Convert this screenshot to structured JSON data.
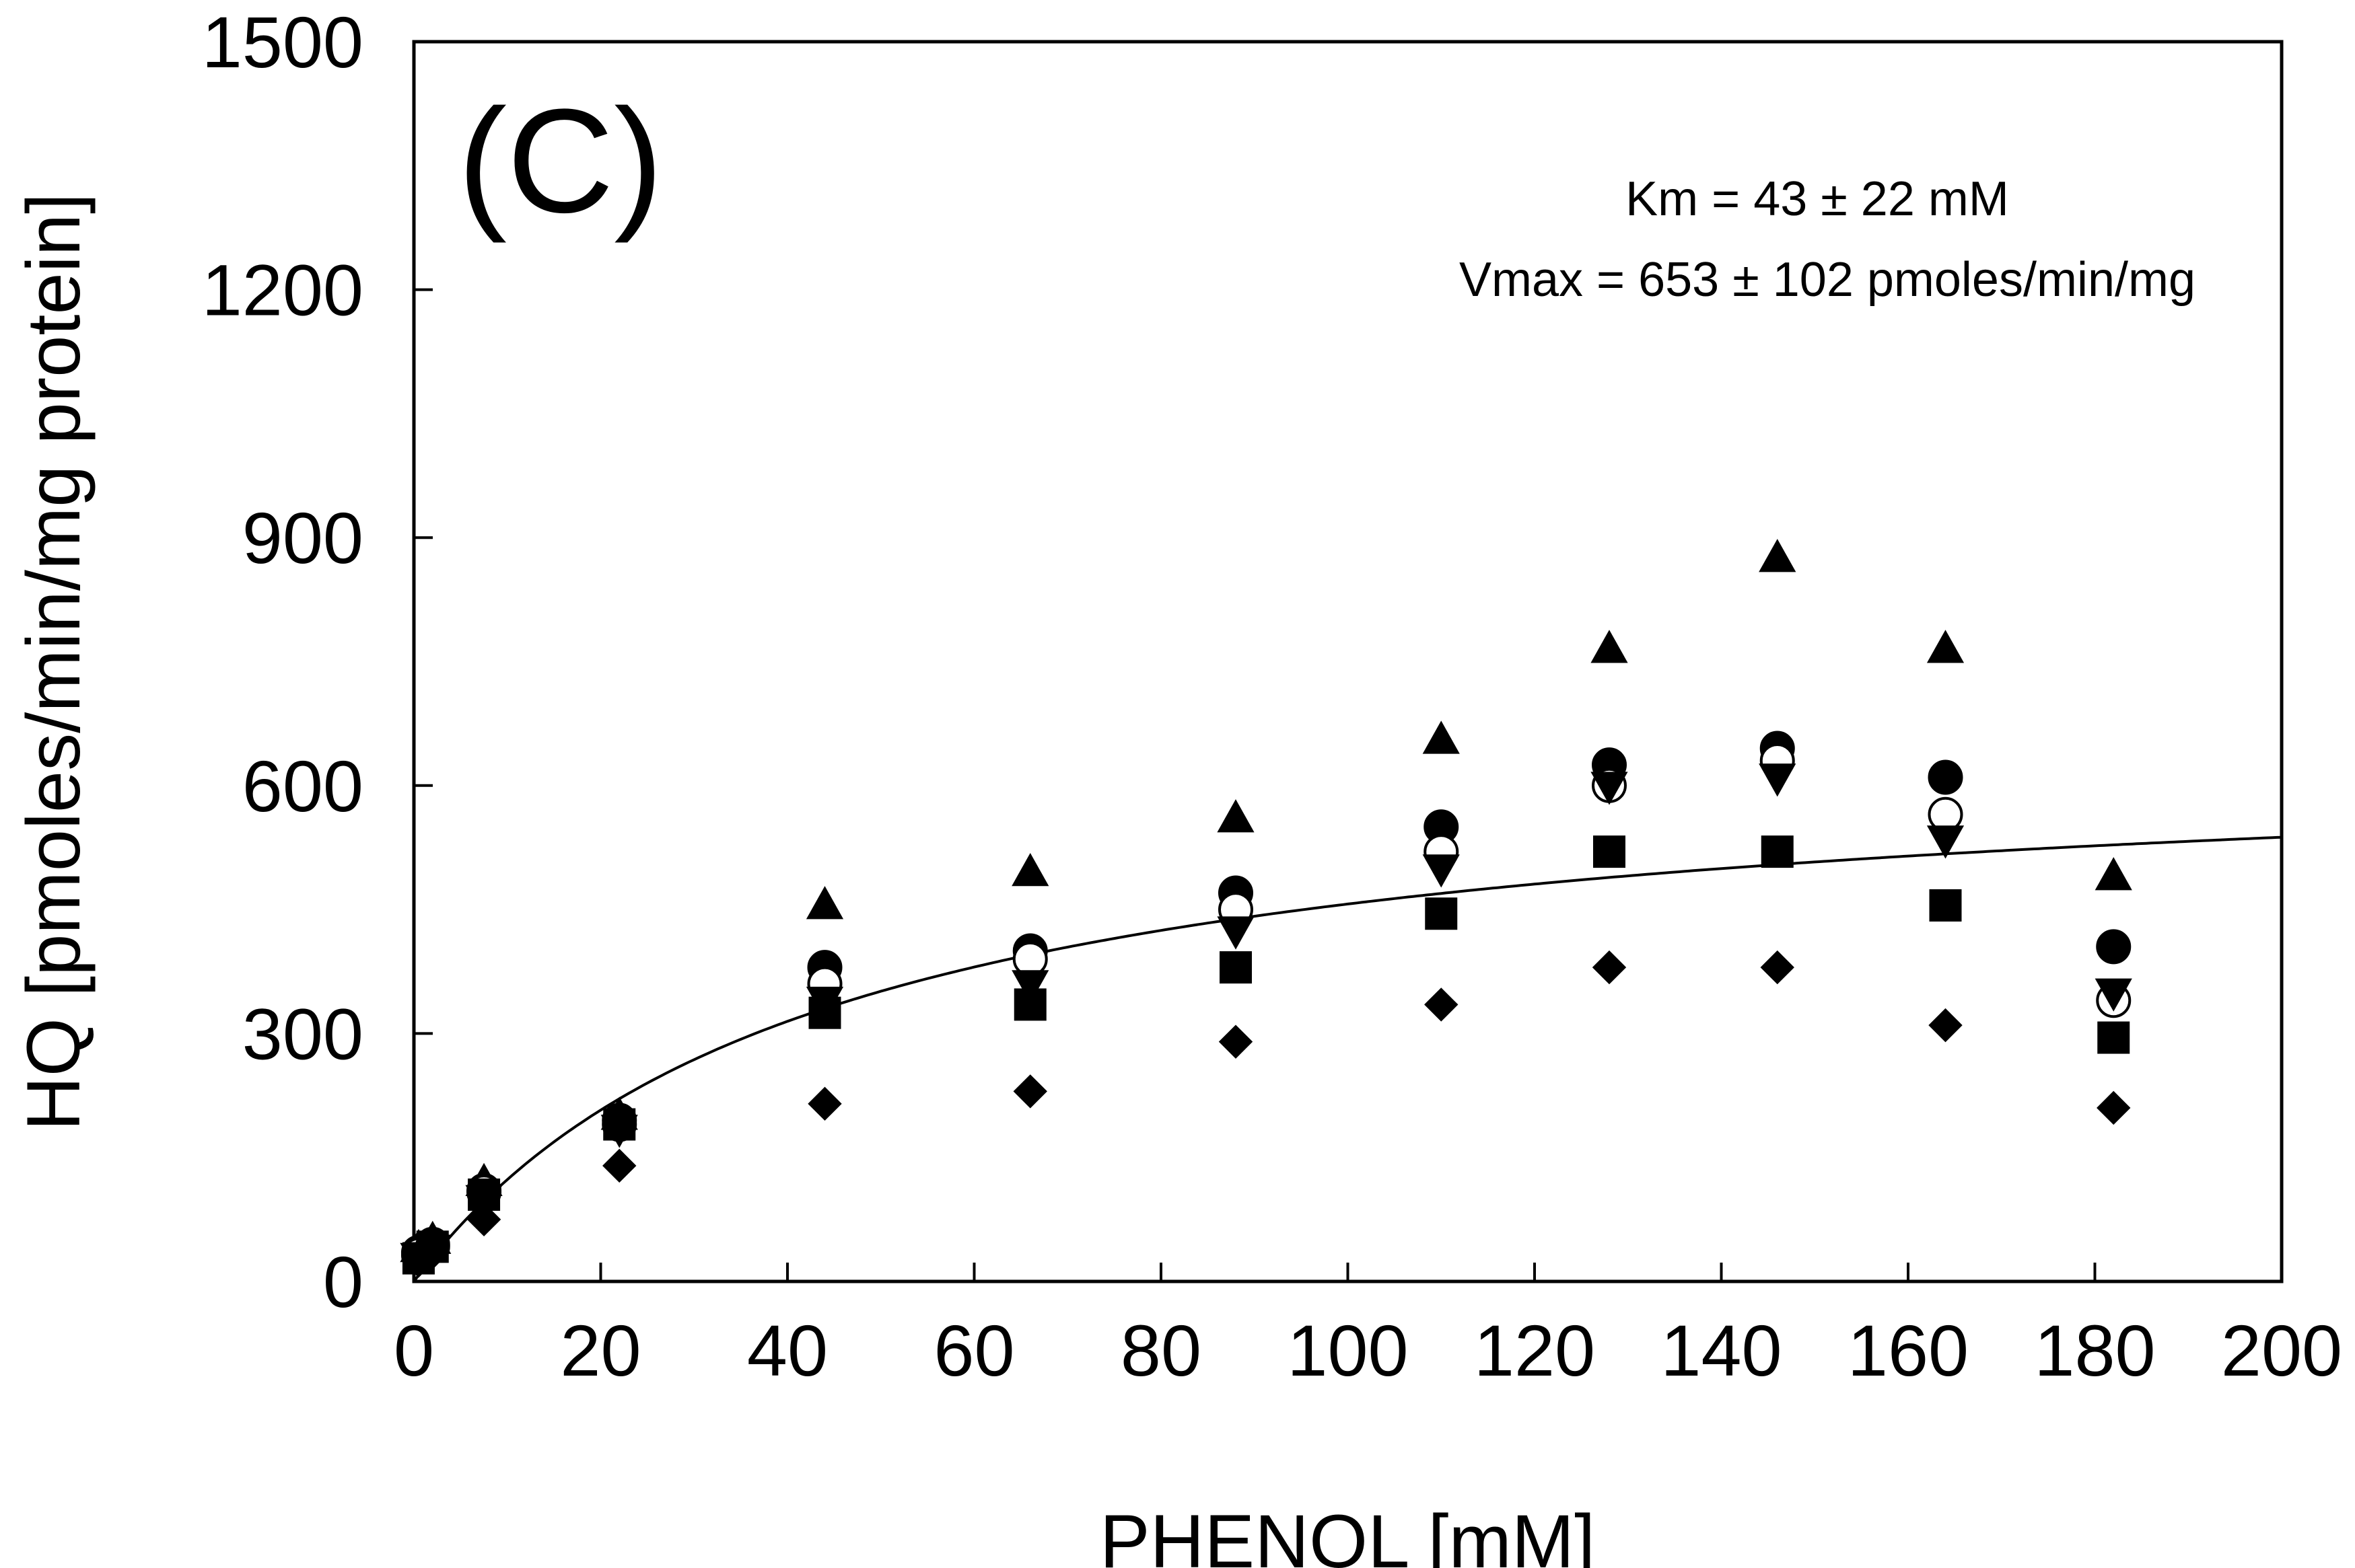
{
  "chart_data": {
    "type": "scatter",
    "title": "",
    "panel_label": "(C)",
    "xlabel": "PHENOL [mM]",
    "ylabel": "HQ [pmoles/min/mg protein]",
    "xlim": [
      0,
      200
    ],
    "ylim": [
      0,
      1500
    ],
    "xticks": [
      0,
      20,
      40,
      60,
      80,
      100,
      120,
      140,
      160,
      180,
      200
    ],
    "yticks": [
      0,
      300,
      600,
      900,
      1200,
      1500
    ],
    "grid": false,
    "annotations": [
      "Km = 43 ± 22 mM",
      "Vmax = 653 ± 102 pmoles/min/mg"
    ],
    "fit": {
      "model": "Michaelis-Menten",
      "km": 43,
      "vmax": 653
    },
    "series": [
      {
        "name": "filled-triangle",
        "marker": "triangle-up",
        "filled": true,
        "x": [
          0.5,
          2,
          7.5,
          22,
          44,
          66,
          88,
          110,
          128,
          146,
          164,
          182
        ],
        "y": [
          40,
          50,
          120,
          200,
          455,
          495,
          560,
          655,
          765,
          875,
          765,
          490
        ]
      },
      {
        "name": "filled-circle",
        "marker": "circle",
        "filled": true,
        "x": [
          0.5,
          2,
          7.5,
          22,
          44,
          66,
          88,
          110,
          128,
          146,
          164,
          182
        ],
        "y": [
          35,
          45,
          110,
          195,
          380,
          400,
          470,
          550,
          625,
          645,
          610,
          405
        ]
      },
      {
        "name": "open-circle",
        "marker": "circle",
        "filled": false,
        "x": [
          0.5,
          2,
          7.5,
          22,
          44,
          66,
          88,
          110,
          128,
          146,
          164,
          182
        ],
        "y": [
          32,
          42,
          108,
          190,
          360,
          390,
          450,
          520,
          600,
          630,
          565,
          340
        ]
      },
      {
        "name": "filled-inverted-triangle",
        "marker": "triangle-down",
        "filled": true,
        "x": [
          0.5,
          2,
          7.5,
          22,
          44,
          66,
          88,
          110,
          128,
          146,
          164,
          182
        ],
        "y": [
          30,
          40,
          100,
          185,
          340,
          360,
          425,
          500,
          600,
          610,
          535,
          350
        ]
      },
      {
        "name": "filled-square",
        "marker": "square",
        "filled": true,
        "x": [
          0.5,
          2,
          7.5,
          22,
          44,
          66,
          88,
          110,
          128,
          146,
          164,
          182
        ],
        "y": [
          28,
          42,
          105,
          190,
          325,
          335,
          380,
          445,
          520,
          520,
          455,
          295
        ]
      },
      {
        "name": "filled-diamond",
        "marker": "diamond",
        "filled": true,
        "x": [
          0.5,
          2,
          7.5,
          22,
          44,
          66,
          88,
          110,
          128,
          146,
          164,
          182
        ],
        "y": [
          25,
          35,
          75,
          140,
          215,
          230,
          290,
          335,
          380,
          380,
          310,
          210
        ]
      }
    ]
  }
}
